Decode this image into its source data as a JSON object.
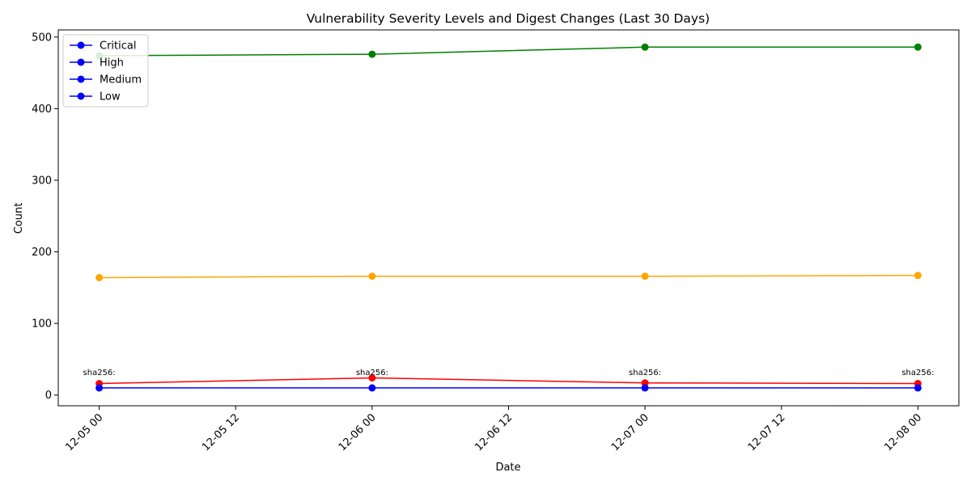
{
  "chart_data": {
    "type": "line",
    "title": "Vulnerability Severity Levels and Digest Changes (Last 30 Days)",
    "xlabel": "Date",
    "ylabel": "Count",
    "xlim": [
      "2024-12-04 20:24",
      "2024-12-08 03:36"
    ],
    "ylim": [
      -15,
      510
    ],
    "x_ticks": [
      {
        "x": "2024-12-05 00:00",
        "label": "12-05 00"
      },
      {
        "x": "2024-12-05 12:00",
        "label": "12-05 12"
      },
      {
        "x": "2024-12-06 00:00",
        "label": "12-06 00"
      },
      {
        "x": "2024-12-06 12:00",
        "label": "12-06 12"
      },
      {
        "x": "2024-12-07 00:00",
        "label": "12-07 00"
      },
      {
        "x": "2024-12-07 12:00",
        "label": "12-07 12"
      },
      {
        "x": "2024-12-08 00:00",
        "label": "12-08 00"
      }
    ],
    "y_ticks": [
      0,
      100,
      200,
      300,
      400,
      500
    ],
    "x": [
      "2024-12-05 00:00",
      "2024-12-06 00:00",
      "2024-12-07 00:00",
      "2024-12-08 00:00"
    ],
    "series": [
      {
        "name": "Critical",
        "color": "#ff0000",
        "marker_color": "#ff0000",
        "legend_color": "#0000ff",
        "values": [
          16,
          24,
          17,
          16
        ]
      },
      {
        "name": "High",
        "color": "#ffa500",
        "marker_color": "#ffa500",
        "legend_color": "#0000ff",
        "values": [
          164,
          166,
          166,
          167
        ]
      },
      {
        "name": "Medium",
        "color": "#008000",
        "marker_color": "#008000",
        "legend_color": "#0000ff",
        "values": [
          474,
          476,
          486,
          486
        ]
      },
      {
        "name": "Low",
        "color": "#0000ff",
        "marker_color": "#0000ff",
        "legend_color": "#0000ff",
        "values": [
          10,
          10,
          10,
          10
        ]
      }
    ],
    "annotations": [
      {
        "x": "2024-12-05 00:00",
        "text": "sha256:"
      },
      {
        "x": "2024-12-06 00:00",
        "text": "sha256:"
      },
      {
        "x": "2024-12-07 00:00",
        "text": "sha256:"
      },
      {
        "x": "2024-12-08 00:00",
        "text": "sha256:"
      }
    ],
    "legend_position": "top-left",
    "grid": false
  }
}
